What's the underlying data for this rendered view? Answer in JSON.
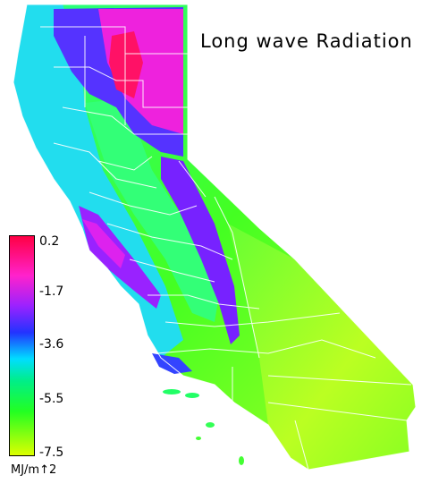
{
  "title": "Long wave Radiation",
  "legend": {
    "ticks": [
      "0.2",
      "-1.7",
      "-3.6",
      "-5.5",
      "-7.5"
    ],
    "units": "MJ/m↑2",
    "colors": [
      "#ff0044",
      "#ff22cc",
      "#9922ff",
      "#2233ff",
      "#00ddff",
      "#00ee88",
      "#22ff22",
      "#ddff00"
    ]
  }
}
